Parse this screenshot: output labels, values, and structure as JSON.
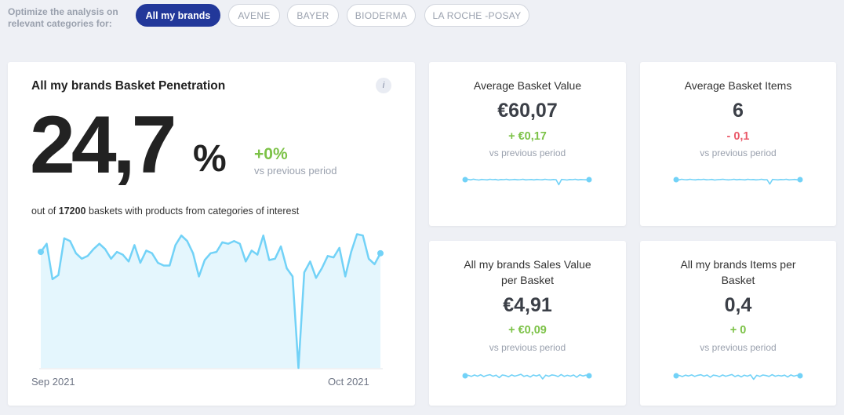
{
  "filters": {
    "label": "Optimize the analysis on relevant categories for:",
    "chips": [
      "All my brands",
      "AVENE",
      "BAYER",
      "BIODERMA",
      "LA ROCHE -POSAY"
    ],
    "active": "All my brands"
  },
  "main": {
    "title": "All my brands Basket Penetration",
    "info": "i",
    "value": "24,7",
    "unit": "%",
    "delta": "+0%",
    "vs": "vs previous period",
    "subline_prefix": "out of ",
    "basket_count": "17200",
    "subline_suffix": " baskets with products from categories of interest",
    "x_start": "Sep 2021",
    "x_end": "Oct 2021"
  },
  "kpis": {
    "avg_basket_value": {
      "title": "Average Basket Value",
      "value": "€60,07",
      "delta": "+ €0,17",
      "vs": "vs previous period"
    },
    "avg_basket_items": {
      "title": "Average Basket Items",
      "value": "6",
      "delta": "- 0,1",
      "vs": "vs previous period"
    },
    "sales_value_per_basket": {
      "title": "All my brands Sales Value per Basket",
      "value": "€4,91",
      "delta": "+ €0,09",
      "vs": "vs previous period"
    },
    "items_per_basket": {
      "title": "All my brands Items per Basket",
      "value": "0,4",
      "delta": "+ 0",
      "vs": "vs previous period"
    }
  },
  "colors": {
    "accent": "#22389a",
    "positive": "#7cc247",
    "negative": "#ea5a6a",
    "line": "#72d2f7",
    "area": "#e4f6fd"
  },
  "chart_data": {
    "type": "area",
    "title": "",
    "x_range": [
      "Sep 2021",
      "Oct 2021"
    ],
    "values": [
      0.85,
      0.91,
      0.65,
      0.68,
      0.95,
      0.93,
      0.84,
      0.8,
      0.82,
      0.87,
      0.91,
      0.87,
      0.8,
      0.85,
      0.83,
      0.78,
      0.9,
      0.77,
      0.86,
      0.84,
      0.77,
      0.75,
      0.75,
      0.9,
      0.97,
      0.93,
      0.84,
      0.67,
      0.79,
      0.84,
      0.85,
      0.92,
      0.91,
      0.93,
      0.91,
      0.78,
      0.86,
      0.83,
      0.97,
      0.79,
      0.8,
      0.89,
      0.73,
      0.67,
      0.0,
      0.7,
      0.78,
      0.66,
      0.73,
      0.82,
      0.81,
      0.88,
      0.67,
      0.85,
      0.98,
      0.97,
      0.8,
      0.76,
      0.84
    ]
  }
}
